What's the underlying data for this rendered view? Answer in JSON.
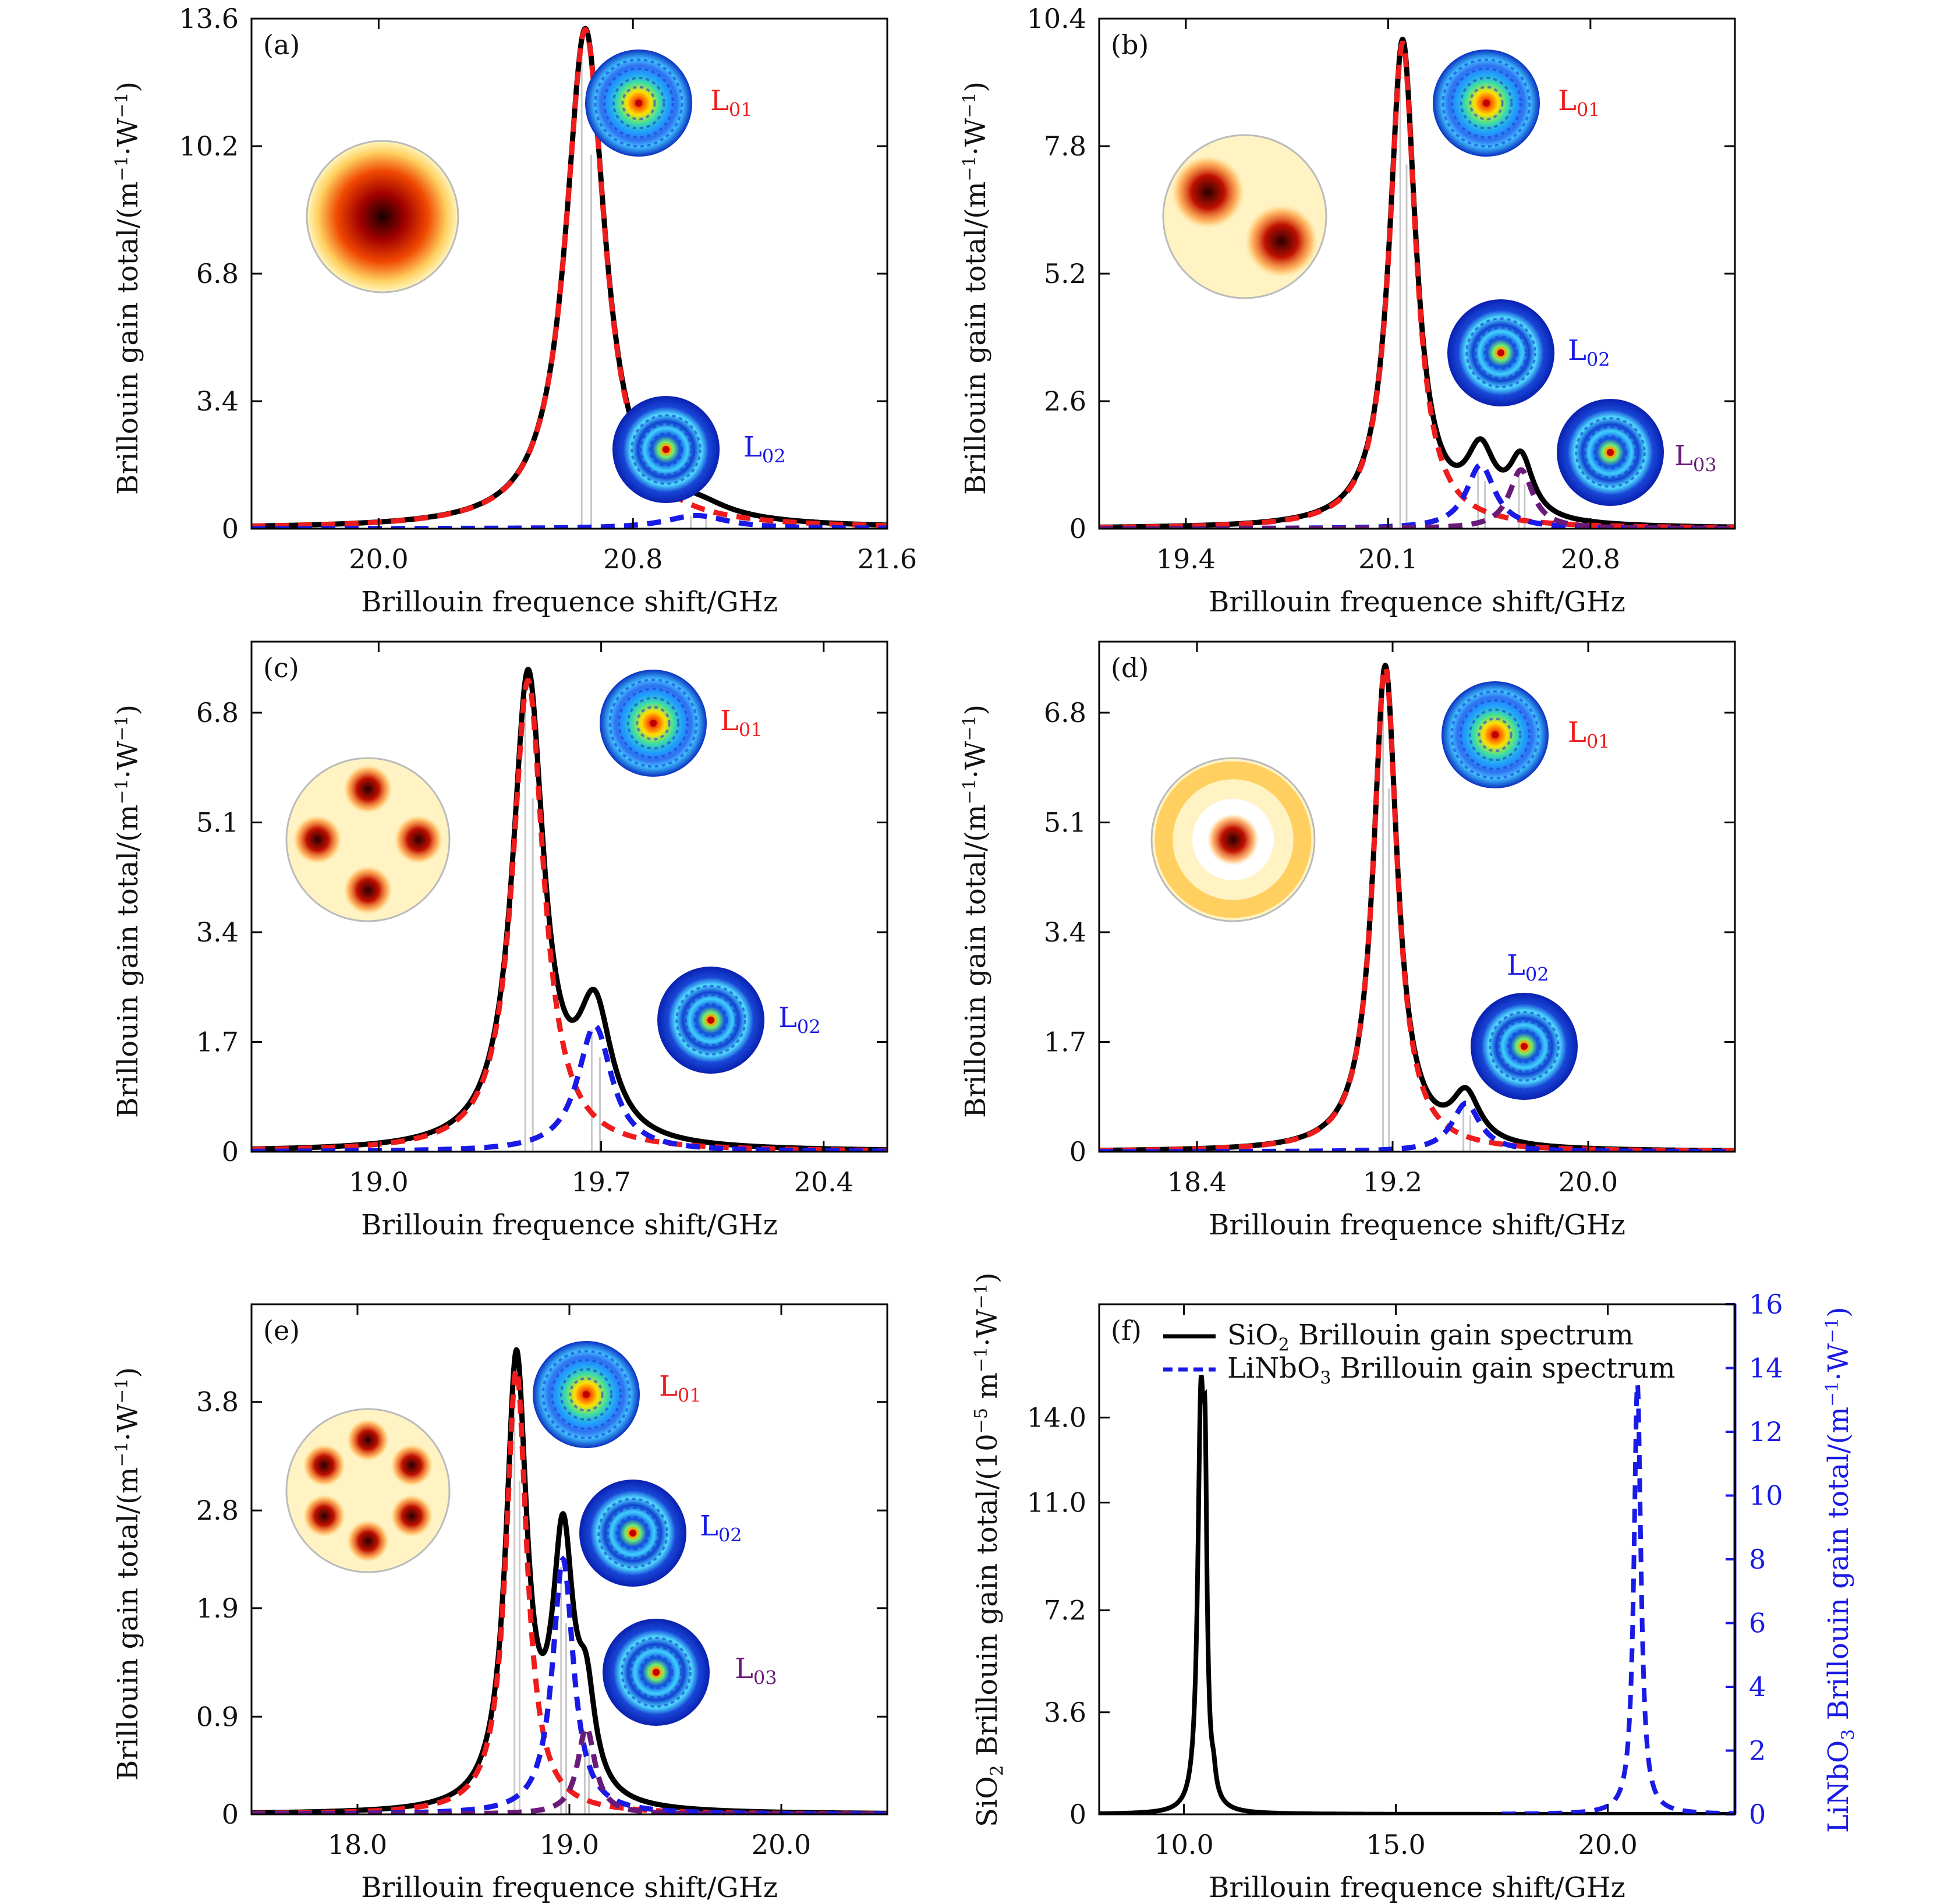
{
  "colors": {
    "sio2": "#000000",
    "L01": "#ee1c1c",
    "L02": "#1a1ae6",
    "L03": "#6a1b7a",
    "raw": "#c8c8c8"
  },
  "common": {
    "xlabel": "Brillouin frequence shift/GHz",
    "ylabel_prefix": "Brillouin gain total/(m",
    "ylabel_mid": "·W",
    "ylabel_end": ")",
    "sup": "−1"
  },
  "chart_data": [
    {
      "id": "a",
      "panel_label": "(a)",
      "type": "line",
      "xlim": [
        19.6,
        21.6
      ],
      "ylim": [
        0,
        13.6
      ],
      "xticks": [
        20.0,
        20.8,
        21.6
      ],
      "xtick_labels": [
        "20.0",
        "20.8",
        "21.6"
      ],
      "yticks": [
        0,
        3.4,
        6.8,
        10.2,
        13.6
      ],
      "ytick_labels": [
        "0",
        "3.4",
        "6.8",
        "10.2",
        "13.6"
      ],
      "total_peaks": [
        {
          "x0": 20.65,
          "A": 13.3,
          "g": 0.075
        },
        {
          "x0": 21.0,
          "A": 0.35,
          "g": 0.12
        }
      ],
      "modes": [
        {
          "name": "L01",
          "x0": 20.65,
          "A": 13.3,
          "g": 0.075
        },
        {
          "name": "L02",
          "x0": 21.0,
          "A": 0.35,
          "g": 0.12
        }
      ],
      "mode_labels": [
        "L01",
        "L02"
      ]
    },
    {
      "id": "b",
      "panel_label": "(b)",
      "type": "line",
      "xlim": [
        19.1,
        21.3
      ],
      "ylim": [
        0,
        10.4
      ],
      "xticks": [
        19.4,
        20.1,
        20.8
      ],
      "xtick_labels": [
        "19.4",
        "20.1",
        "20.8"
      ],
      "yticks": [
        0,
        2.6,
        5.2,
        7.8,
        10.4
      ],
      "ytick_labels": [
        "0",
        "2.6",
        "5.2",
        "7.8",
        "10.4"
      ],
      "total_peaks": [
        {
          "x0": 20.15,
          "A": 9.9,
          "g": 0.055
        },
        {
          "x0": 20.42,
          "A": 1.3,
          "g": 0.06
        },
        {
          "x0": 20.56,
          "A": 1.2,
          "g": 0.05
        }
      ],
      "modes": [
        {
          "name": "L01",
          "x0": 20.15,
          "A": 9.9,
          "g": 0.055
        },
        {
          "name": "L02",
          "x0": 20.42,
          "A": 1.3,
          "g": 0.06
        },
        {
          "name": "L03",
          "x0": 20.56,
          "A": 1.2,
          "g": 0.05
        }
      ],
      "mode_labels": [
        "L01",
        "L02",
        "L03"
      ]
    },
    {
      "id": "c",
      "panel_label": "(c)",
      "type": "line",
      "xlim": [
        18.6,
        20.6
      ],
      "ylim": [
        0,
        7.9
      ],
      "xticks": [
        19.0,
        19.7,
        20.4
      ],
      "xtick_labels": [
        "19.0",
        "19.7",
        "20.4"
      ],
      "yticks": [
        0,
        1.7,
        3.4,
        5.1,
        6.8
      ],
      "ytick_labels": [
        "0",
        "1.7",
        "3.4",
        "5.1",
        "6.8"
      ],
      "total_peaks": [
        {
          "x0": 19.47,
          "A": 7.3,
          "g": 0.06
        },
        {
          "x0": 19.68,
          "A": 1.95,
          "g": 0.065
        }
      ],
      "modes": [
        {
          "name": "L01",
          "x0": 19.47,
          "A": 7.3,
          "g": 0.06
        },
        {
          "name": "L02",
          "x0": 19.68,
          "A": 1.95,
          "g": 0.065
        }
      ],
      "mode_labels": [
        "L01",
        "L02"
      ]
    },
    {
      "id": "d",
      "panel_label": "(d)",
      "type": "line",
      "xlim": [
        18.0,
        20.6
      ],
      "ylim": [
        0,
        7.9
      ],
      "xticks": [
        18.4,
        19.2,
        20.0
      ],
      "xtick_labels": [
        "18.4",
        "19.2",
        "20.0"
      ],
      "yticks": [
        0,
        1.7,
        3.4,
        5.1,
        6.8
      ],
      "ytick_labels": [
        "0",
        "1.7",
        "3.4",
        "5.1",
        "6.8"
      ],
      "total_peaks": [
        {
          "x0": 19.17,
          "A": 7.5,
          "g": 0.06
        },
        {
          "x0": 19.5,
          "A": 0.75,
          "g": 0.07
        }
      ],
      "modes": [
        {
          "name": "L01",
          "x0": 19.17,
          "A": 7.5,
          "g": 0.06
        },
        {
          "name": "L02",
          "x0": 19.5,
          "A": 0.75,
          "g": 0.07
        }
      ],
      "mode_labels": [
        "L01",
        "L02"
      ]
    },
    {
      "id": "e",
      "panel_label": "(e)",
      "type": "line",
      "xlim": [
        17.5,
        20.5
      ],
      "ylim": [
        0,
        4.7
      ],
      "xticks": [
        18.0,
        19.0,
        20.0
      ],
      "xtick_labels": [
        "18.0",
        "19.0",
        "20.0"
      ],
      "yticks": [
        0,
        0.9,
        1.9,
        2.8,
        3.8
      ],
      "ytick_labels": [
        "0",
        "0.9",
        "1.9",
        "2.8",
        "3.8"
      ],
      "total_peaks": [
        {
          "x0": 18.75,
          "A": 4.1,
          "g": 0.06
        },
        {
          "x0": 18.97,
          "A": 2.35,
          "g": 0.06
        },
        {
          "x0": 19.08,
          "A": 0.8,
          "g": 0.05
        }
      ],
      "modes": [
        {
          "name": "L01",
          "x0": 18.75,
          "A": 4.1,
          "g": 0.06
        },
        {
          "name": "L02",
          "x0": 18.97,
          "A": 2.35,
          "g": 0.06
        },
        {
          "name": "L03",
          "x0": 19.08,
          "A": 0.8,
          "g": 0.05
        }
      ],
      "mode_labels": [
        "L01",
        "L02",
        "L03"
      ]
    },
    {
      "id": "f",
      "panel_label": "(f)",
      "type": "line",
      "xlim": [
        8.0,
        23.0
      ],
      "ylim": [
        0,
        18.0
      ],
      "xticks": [
        10.0,
        15.0,
        20.0
      ],
      "xtick_labels": [
        "10.0",
        "15.0",
        "20.0"
      ],
      "yticks": [
        0,
        3.6,
        7.2,
        11.0,
        14.0
      ],
      "ytick_labels": [
        "0",
        "3.6",
        "7.2",
        "11.0",
        "14.0"
      ],
      "y2lim": [
        0,
        16
      ],
      "y2ticks": [
        0,
        2,
        4,
        6,
        8,
        10,
        12,
        14,
        16
      ],
      "y2tick_labels": [
        "0",
        "2",
        "4",
        "6",
        "8",
        "10",
        "12",
        "14",
        "16"
      ],
      "series": [
        {
          "name": "SiO2 Brillouin gain spectrum",
          "axis": "left",
          "x0": 10.4,
          "A": 13.7,
          "g": 0.09
        },
        {
          "name": "LiNbO3 Brillouin gain spectrum",
          "axis": "right",
          "x0": 20.7,
          "A": 13.5,
          "g": 0.1
        }
      ],
      "legend": {
        "position": "top-left",
        "sio2_prefix": "SiO",
        "sio2_sub": "2",
        "sio2_suffix": " Brillouin gain spectrum",
        "ln_prefix": "LiNbO",
        "ln_sub": "3",
        "ln_suffix": " Brillouin gain spectrum"
      },
      "ylabel_left": {
        "a": "SiO",
        "b": "2",
        "c": " Brillouin gain total/(10",
        "d": "−5",
        "e": " m",
        "f": "−1",
        "g": "·W",
        "h": "−1",
        "i": ")"
      },
      "ylabel_right": {
        "a": "LiNbO",
        "b": "3",
        "c": " Brillouin gain total/(m",
        "d": "−1",
        "e": "·W",
        "f": "−1",
        "g": ")"
      }
    }
  ],
  "mode_label_parts": {
    "L": "L",
    "L01_sub": "01",
    "L02_sub": "02",
    "L03_sub": "03"
  }
}
